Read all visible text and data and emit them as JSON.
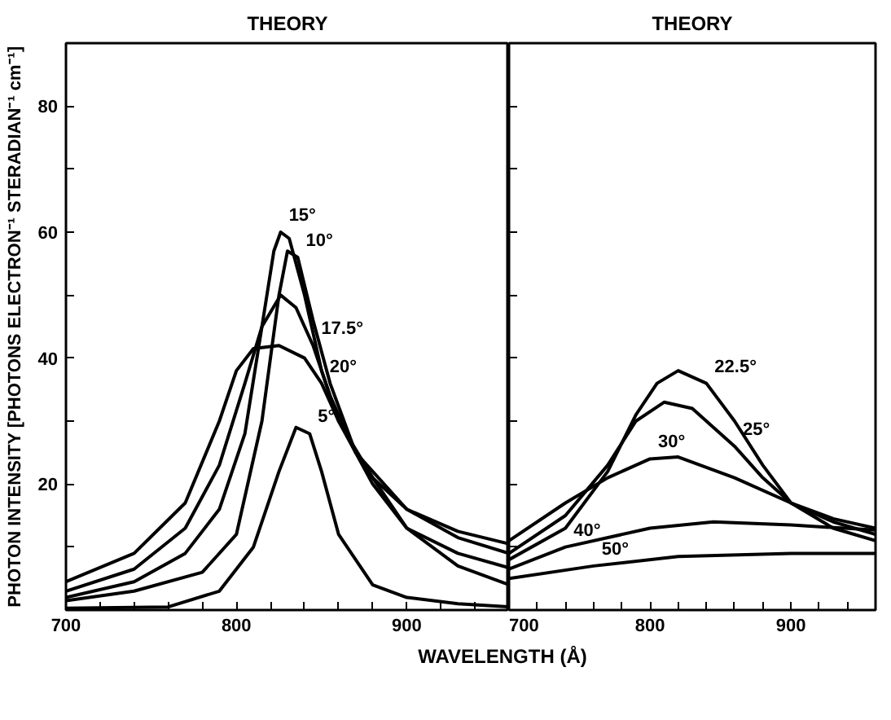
{
  "chart_data": [
    {
      "type": "line",
      "title": "THEORY",
      "ylabel": "PHOTON INTENSITY [PHOTONS ELECTRON⁻¹ STERADIAN⁻¹ cm⁻¹]",
      "xlabel": "WAVELENGTH (Å)",
      "xlim": [
        700,
        960
      ],
      "xticks": [
        700,
        {
          "value": 720,
          "label": null
        },
        {
          "value": 740,
          "label": null
        },
        {
          "value": 760,
          "label": null
        },
        {
          "value": 780,
          "label": null
        },
        800,
        {
          "value": 820,
          "label": null
        },
        {
          "value": 840,
          "label": null
        },
        {
          "value": 860,
          "label": null
        },
        {
          "value": 880,
          "label": null
        },
        900,
        {
          "value": 920,
          "label": null
        },
        {
          "value": 940,
          "label": null
        }
      ],
      "ylim": [
        0,
        90
      ],
      "yticks": [
        {
          "value": 10,
          "label": null
        },
        20,
        {
          "value": 30,
          "label": null
        },
        40,
        {
          "value": 50,
          "label": null
        },
        60,
        {
          "value": 70,
          "label": null
        },
        80
      ],
      "grid": false,
      "marker": "none",
      "line_style": "solid",
      "series": [
        {
          "color": "#000000",
          "x": [
            700,
            740,
            770,
            790,
            800,
            810,
            825,
            840,
            850,
            860,
            880,
            900,
            930,
            960
          ],
          "values": [
            4.5,
            9,
            17,
            30,
            38,
            41.5,
            42,
            40,
            36,
            30,
            21,
            16,
            12.5,
            10.5
          ]
        },
        {
          "color": "#000000",
          "x": [
            700,
            740,
            770,
            790,
            805,
            815,
            826,
            835,
            845,
            855,
            870,
            900,
            930,
            960
          ],
          "values": [
            3,
            6.5,
            13,
            23,
            36,
            45,
            50,
            48,
            42,
            34,
            25,
            16,
            11.5,
            9
          ]
        },
        {
          "color": "#000000",
          "x": [
            700,
            740,
            770,
            790,
            805,
            815,
            822,
            826,
            831,
            840,
            850,
            860,
            880,
            900,
            930,
            960
          ],
          "values": [
            2,
            4.5,
            9,
            16,
            28,
            45,
            57,
            60,
            59,
            50,
            38,
            30,
            20,
            13,
            9,
            6.7
          ]
        },
        {
          "color": "#000000",
          "x": [
            700,
            740,
            780,
            800,
            815,
            825,
            830,
            836,
            845,
            855,
            870,
            900,
            930,
            960
          ],
          "values": [
            1.5,
            3,
            6,
            12,
            30,
            50,
            57,
            56,
            46,
            36,
            25,
            13,
            7,
            4
          ]
        },
        {
          "color": "#000000",
          "x": [
            700,
            760,
            790,
            810,
            825,
            835,
            843,
            850,
            860,
            880,
            900,
            930,
            960
          ],
          "values": [
            0.3,
            0.5,
            3,
            10,
            22,
            29,
            28,
            22,
            12,
            4,
            2,
            1,
            0.5
          ]
        }
      ],
      "annotations": [
        {
          "text": "15°",
          "x": 826,
          "y": 60
        },
        {
          "text": "10°",
          "x": 836,
          "y": 56
        },
        {
          "text": "17.5°",
          "x": 845,
          "y": 42
        },
        {
          "text": "20°",
          "x": 850,
          "y": 36
        },
        {
          "text": "5°",
          "x": 843,
          "y": 28
        }
      ],
      "tick_labels": "xy"
    },
    {
      "type": "line",
      "title": "THEORY",
      "xlim": [
        700,
        960
      ],
      "xticks": [
        700,
        {
          "value": 720,
          "label": null
        },
        {
          "value": 740,
          "label": null
        },
        {
          "value": 760,
          "label": null
        },
        {
          "value": 780,
          "label": null
        },
        800,
        {
          "value": 820,
          "label": null
        },
        {
          "value": 840,
          "label": null
        },
        {
          "value": 860,
          "label": null
        },
        {
          "value": 880,
          "label": null
        },
        900,
        {
          "value": 920,
          "label": null
        },
        {
          "value": 940,
          "label": null
        }
      ],
      "ylim": [
        0,
        90
      ],
      "yticks": [
        {
          "value": 10,
          "label": null
        },
        {
          "value": 20,
          "label": null
        },
        {
          "value": 30,
          "label": null
        },
        {
          "value": 40,
          "label": null
        },
        {
          "value": 50,
          "label": null
        },
        {
          "value": 60,
          "label": null
        },
        {
          "value": 70,
          "label": null
        },
        {
          "value": 80,
          "label": null
        }
      ],
      "grid": false,
      "marker": "none",
      "line_style": "solid",
      "series": [
        {
          "color": "#000000",
          "x": [
            700,
            740,
            770,
            790,
            805,
            820,
            840,
            860,
            880,
            900,
            930,
            960
          ],
          "values": [
            8,
            13,
            22,
            31,
            36,
            38,
            36,
            30,
            23,
            17,
            13,
            11
          ]
        },
        {
          "color": "#000000",
          "x": [
            700,
            740,
            770,
            790,
            810,
            830,
            860,
            880,
            900,
            930,
            960
          ],
          "values": [
            9,
            15,
            23,
            30,
            33,
            32,
            26,
            21,
            17,
            14,
            12
          ]
        },
        {
          "color": "#000000",
          "x": [
            700,
            740,
            770,
            800,
            820,
            860,
            900,
            930,
            960
          ],
          "values": [
            11,
            17,
            21,
            24,
            24.3,
            21,
            17,
            14.5,
            13
          ]
        },
        {
          "color": "#000000",
          "x": [
            700,
            740,
            800,
            845,
            900,
            960
          ],
          "values": [
            6.5,
            10,
            13,
            14,
            13.5,
            12.7
          ]
        },
        {
          "color": "#000000",
          "x": [
            700,
            760,
            820,
            900,
            960
          ],
          "values": [
            5,
            7,
            8.5,
            9,
            9
          ]
        }
      ],
      "annotations": [
        {
          "text": "22.5°",
          "x": 840,
          "y": 36
        },
        {
          "text": "25°",
          "x": 860,
          "y": 26
        },
        {
          "text": "30°",
          "x": 800,
          "y": 24
        },
        {
          "text": "40°",
          "x": 740,
          "y": 10
        },
        {
          "text": "50°",
          "x": 760,
          "y": 7
        }
      ],
      "tick_labels": "x"
    }
  ]
}
